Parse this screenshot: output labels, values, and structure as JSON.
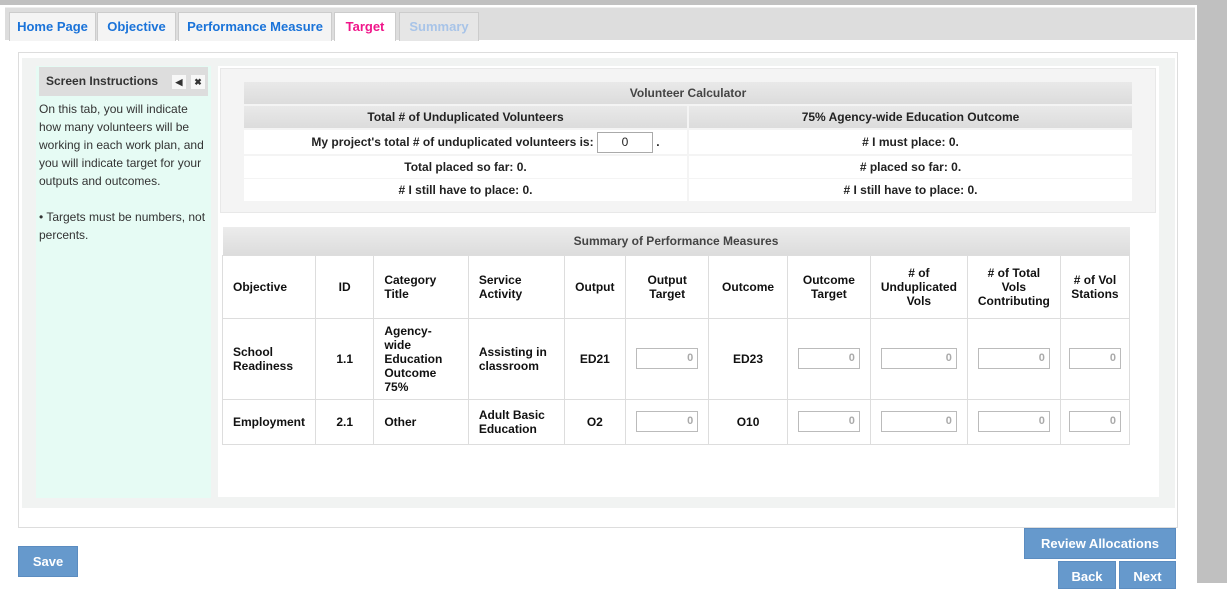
{
  "tabs": [
    {
      "label": "Home Page"
    },
    {
      "label": "Objective"
    },
    {
      "label": "Performance Measure"
    },
    {
      "label": "Target"
    },
    {
      "label": "Summary"
    }
  ],
  "instructions": {
    "title": "Screen Instructions",
    "text": "On this tab, you will indicate how many volunteers will be working in each work plan, and you will indicate target for your outputs and outcomes.",
    "bullet": "• Targets must be numbers, not percents."
  },
  "calculator": {
    "title": "Volunteer Calculator",
    "col1_header": "Total # of Unduplicated Volunteers",
    "col2_header": "75% Agency-wide Education Outcome",
    "input_label": "My project's total # of unduplicated volunteers is:",
    "input_value": "0",
    "input_suffix": ".",
    "placed_so_far": "Total placed so far: 0.",
    "still_to_place": "# I still have to place: 0.",
    "must_place": "# I must place: 0.",
    "placed_so_far_2": "# placed so far: 0.",
    "still_to_place_2": "# I still have to place: 0."
  },
  "summary": {
    "title": "Summary of Performance Measures",
    "headers": [
      "Objective",
      "ID",
      "Category Title",
      "Service Activity",
      "Output",
      "Output Target",
      "Outcome",
      "Outcome Target",
      "# of Unduplicated Vols",
      "# of Total Vols Contributing",
      "# of Vol Stations"
    ],
    "rows": [
      {
        "objective": "School Readiness",
        "id": "1.1",
        "category": "Agency-wide Education Outcome 75%",
        "activity": "Assisting in classroom",
        "output": "ED21",
        "output_target": "0",
        "outcome": "ED23",
        "outcome_target": "0",
        "unduplicated": "0",
        "total": "0",
        "stations": "0"
      },
      {
        "objective": "Employment",
        "id": "2.1",
        "category": "Other",
        "activity": "Adult Basic Education",
        "output": "O2",
        "output_target": "0",
        "outcome": "O10",
        "outcome_target": "0",
        "unduplicated": "0",
        "total": "0",
        "stations": "0"
      }
    ]
  },
  "buttons": {
    "save": "Save",
    "review": "Review Allocations",
    "back": "Back",
    "next": "Next"
  },
  "colors": {
    "button": "#6699cc",
    "active_tab": "#f0168a",
    "tab_link": "#1a73d9",
    "instructions_bg": "#e6fbf4"
  }
}
